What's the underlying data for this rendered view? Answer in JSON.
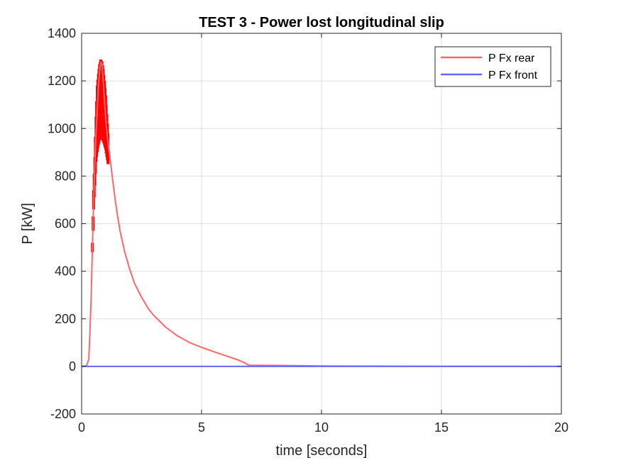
{
  "chart_data": {
    "type": "line",
    "title": "TEST 3 - Power lost longitudinal slip",
    "xlabel": "time [seconds]",
    "ylabel": "P [kW]",
    "xlim": [
      0,
      20
    ],
    "ylim": [
      -200,
      1400
    ],
    "xticks": [
      "0",
      "5",
      "10",
      "15",
      "20"
    ],
    "yticks": [
      "-200",
      "0",
      "200",
      "400",
      "600",
      "800",
      "1000",
      "1200",
      "1400"
    ],
    "grid": true,
    "legend_position": "top-right",
    "series": [
      {
        "name": "P Fx rear",
        "color": "#ff6666",
        "x": [
          0,
          0.2,
          0.3,
          0.35,
          0.4,
          0.45,
          0.5,
          0.55,
          0.6,
          0.65,
          0.7,
          0.75,
          0.8,
          0.85,
          0.9,
          0.95,
          1.0,
          1.05,
          1.1,
          1.2,
          1.3,
          1.4,
          1.5,
          1.6,
          1.8,
          2.0,
          2.2,
          2.5,
          2.8,
          3.0,
          3.5,
          4.0,
          4.5,
          5.0,
          5.5,
          6.0,
          6.5,
          6.8,
          6.9,
          7.0,
          8.0,
          9.0,
          10.0,
          12.0,
          15.0,
          20.0
        ],
        "y": [
          0,
          2,
          30,
          150,
          300,
          500,
          700,
          850,
          980,
          1080,
          1180,
          1240,
          1280,
          1270,
          1200,
          1120,
          1050,
          990,
          940,
          860,
          780,
          700,
          630,
          570,
          480,
          410,
          350,
          290,
          240,
          215,
          165,
          128,
          100,
          80,
          62,
          45,
          28,
          15,
          8,
          5,
          4,
          3,
          2,
          1,
          0.5,
          0
        ],
        "band_x": [
          0.45,
          0.5,
          0.55,
          0.6,
          0.65,
          0.7,
          0.75,
          0.8,
          0.85,
          0.9,
          0.95,
          1.0,
          1.05,
          1.1
        ],
        "band_low": [
          480,
          660,
          760,
          860,
          900,
          930,
          950,
          960,
          955,
          945,
          930,
          910,
          880,
          850
        ],
        "band_high": [
          520,
          740,
          880,
          1050,
          1180,
          1230,
          1270,
          1290,
          1280,
          1250,
          1200,
          1140,
          1060,
          980
        ],
        "band_color": "#ff0000"
      },
      {
        "name": "P Fx front",
        "color": "#6666ff",
        "x": [
          0,
          5,
          10,
          15,
          20
        ],
        "y": [
          0,
          0,
          0,
          0,
          0
        ]
      }
    ]
  }
}
